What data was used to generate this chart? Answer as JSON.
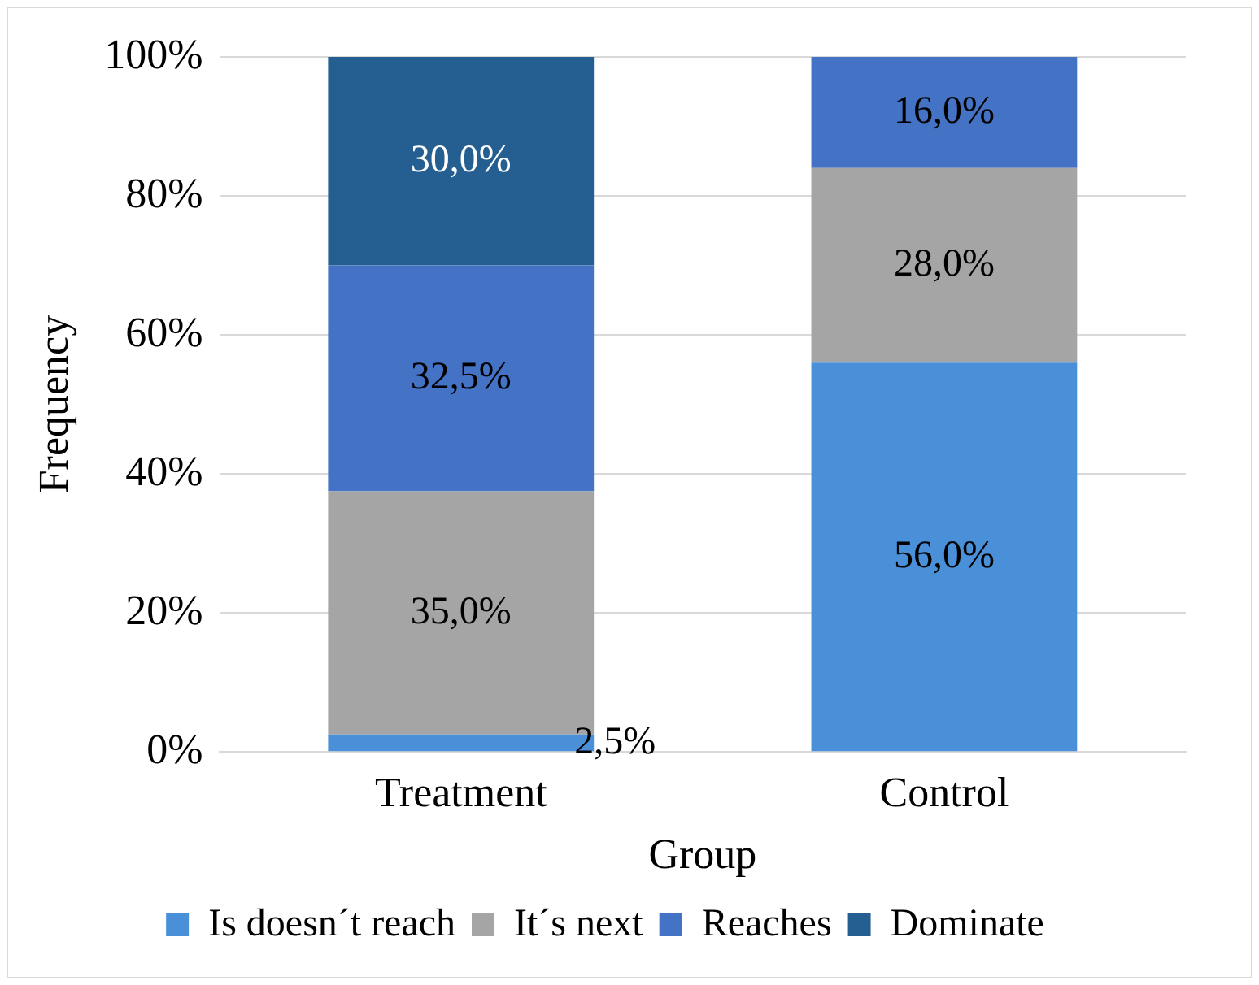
{
  "chart_data": {
    "type": "bar",
    "stacked": true,
    "xlabel": "Group",
    "ylabel": "Frequency",
    "categories": [
      "Treatment",
      "Control"
    ],
    "series": [
      {
        "name": "Is doesn´t reach",
        "color": "#4a90d9",
        "values": [
          2.5,
          56
        ],
        "value_labels": [
          "2,5%",
          "56,0%"
        ]
      },
      {
        "name": "It´s next",
        "color": "#a5a5a5",
        "values": [
          35,
          28
        ],
        "value_labels": [
          "35,0%",
          "28,0%"
        ]
      },
      {
        "name": "Reaches",
        "color": "#4472c4",
        "values": [
          32.5,
          16
        ],
        "value_labels": [
          "32,5%",
          "16,0%"
        ]
      },
      {
        "name": "Dominate",
        "color": "#255e91",
        "values": [
          30,
          0
        ],
        "value_labels": [
          "30,0%",
          null
        ]
      }
    ],
    "ylim": [
      0,
      100
    ],
    "yticks": [
      {
        "value": 0,
        "label": "0%"
      },
      {
        "value": 20,
        "label": "20%"
      },
      {
        "value": 40,
        "label": "40%"
      },
      {
        "value": 60,
        "label": "60%"
      },
      {
        "value": 80,
        "label": "80%"
      },
      {
        "value": 100,
        "label": "100%"
      }
    ],
    "grid": "y",
    "legend": "bottom"
  }
}
